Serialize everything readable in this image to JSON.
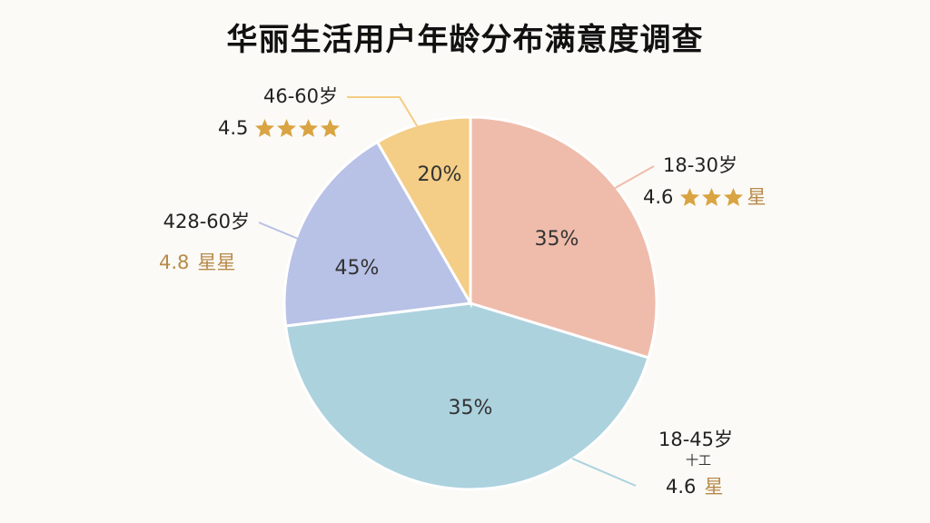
{
  "title": "华丽生活用户年龄分布满意度调查",
  "colors": {
    "slice_18_30": "#efbcab",
    "slice_18_45": "#acd2de",
    "slice_428_60": "#b8c1e6",
    "slice_46_60": "#f4cd86",
    "star": "#d9a441"
  },
  "chart_data": {
    "type": "pie",
    "title": "华丽生活用户年龄分布满意度调查",
    "slices": [
      {
        "label": "18-30岁",
        "value": 35,
        "value_text": "35%",
        "rating_text": "4.6",
        "stars": 3,
        "suffix": "星",
        "color": "#efbcab"
      },
      {
        "label": "18-45岁",
        "value": 35,
        "value_text": "35%",
        "rating_text": "4.6",
        "stars": 0,
        "suffix": "星",
        "note": "十工",
        "color": "#acd2de"
      },
      {
        "label": "428-60岁",
        "value": 45,
        "value_text": "45%",
        "rating_text": "4.8",
        "stars": 0,
        "suffix": "星星",
        "color": "#b8c1e6"
      },
      {
        "label": "46-60岁",
        "value": 20,
        "value_text": "20%",
        "rating_text": "4.5",
        "stars": 4,
        "suffix": "",
        "color": "#f4cd86"
      }
    ]
  }
}
